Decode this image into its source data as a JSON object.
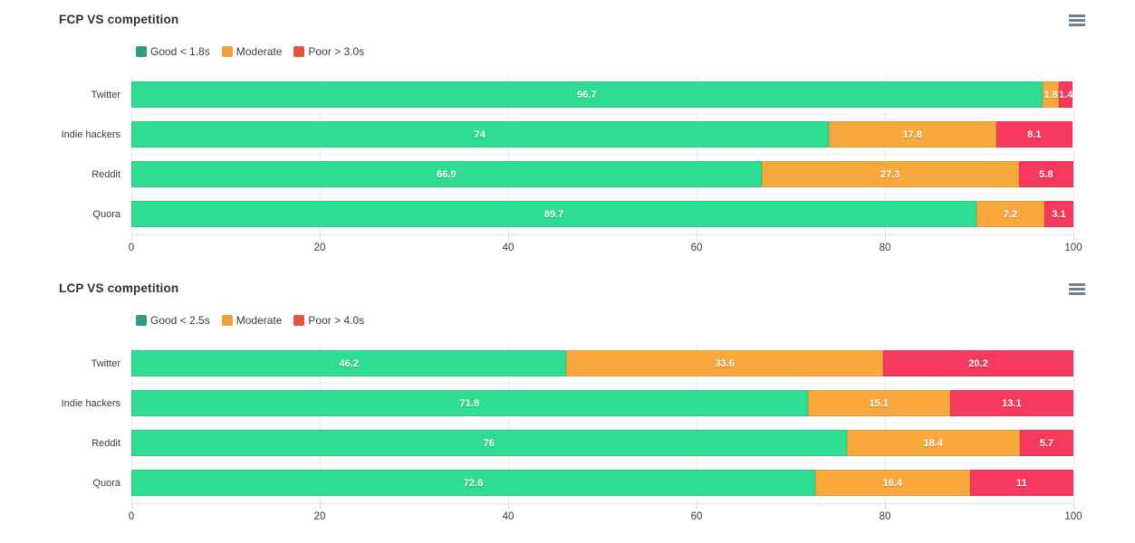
{
  "page": {
    "background_color": "#ffffff",
    "value_label_color": "#ffffff",
    "axis_label_color": "#373d3f",
    "grid_color": "#ececec",
    "menu_icon_color": "#6e8192"
  },
  "toolbar": {
    "menu_icon": "hamburger-menu-icon"
  },
  "chart_data": [
    {
      "type": "bar",
      "orientation": "horizontal",
      "stacked": true,
      "stack_type": "percent",
      "title": "FCP VS competition",
      "categories": [
        "Twitter",
        "Indie hackers",
        "Reddit",
        "Quora"
      ],
      "series": [
        {
          "name": "Good < 1.8s",
          "color": "#2edd91",
          "legend_marker_color": "#2e9c87",
          "values": [
            96.7,
            74,
            66.9,
            89.7
          ]
        },
        {
          "name": "Moderate",
          "color": "#f8a83d",
          "legend_marker_color": "#f0a13c",
          "values": [
            1.8,
            17.8,
            27.3,
            7.2
          ]
        },
        {
          "name": "Poor > 3.0s",
          "color": "#f8395e",
          "legend_marker_color": "#e2543e",
          "values": [
            1.4,
            8.1,
            5.8,
            3.1
          ]
        }
      ],
      "xlabel": "",
      "ylabel": "",
      "xaxis": {
        "min": 0,
        "max": 100,
        "ticks": [
          0,
          20,
          40,
          60,
          80,
          100
        ]
      },
      "legend_position": "top-left",
      "grid": true,
      "data_labels": true
    },
    {
      "type": "bar",
      "orientation": "horizontal",
      "stacked": true,
      "stack_type": "percent",
      "title": "LCP VS competition",
      "categories": [
        "Twitter",
        "Indie hackers",
        "Reddit",
        "Quora"
      ],
      "series": [
        {
          "name": "Good < 2.5s",
          "color": "#2edd91",
          "legend_marker_color": "#2e9c87",
          "values": [
            46.2,
            71.8,
            76,
            72.6
          ]
        },
        {
          "name": "Moderate",
          "color": "#f8a83d",
          "legend_marker_color": "#f0a13c",
          "values": [
            33.6,
            15.1,
            18.4,
            16.4
          ]
        },
        {
          "name": "Poor > 4.0s",
          "color": "#f8395e",
          "legend_marker_color": "#e2543e",
          "values": [
            20.2,
            13.1,
            5.7,
            11
          ]
        }
      ],
      "xlabel": "",
      "ylabel": "",
      "xaxis": {
        "min": 0,
        "max": 100,
        "ticks": [
          0,
          20,
          40,
          60,
          80,
          100
        ]
      },
      "legend_position": "top-left",
      "grid": true,
      "data_labels": true
    }
  ]
}
